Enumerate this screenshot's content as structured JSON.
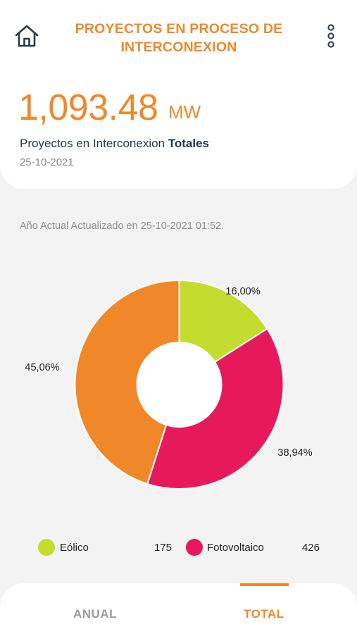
{
  "header": {
    "title": "PROYECTOS EN PROCESO DE INTERCONEXION"
  },
  "summary": {
    "value": "1,093.48",
    "unit": "MW",
    "subtitle_prefix": "Proyectos en Interconexion ",
    "subtitle_bold": "Totales",
    "date": "25-10-2021"
  },
  "updated_text": "Año Actual Actualizado en 25-10-2021 01:52.",
  "chart_data": {
    "type": "pie",
    "donut": true,
    "slices": [
      {
        "label": "16,00%",
        "percent": 16.0,
        "color": "#c3dc2e"
      },
      {
        "label": "38,94%",
        "percent": 38.94,
        "color": "#e8195b"
      },
      {
        "label": "45,06%",
        "percent": 45.06,
        "color": "#f0882a"
      }
    ],
    "legend": [
      {
        "name": "Eólico",
        "value": "175",
        "color": "#c3dc2e"
      },
      {
        "name": "Fotovoltaico",
        "value": "426",
        "color": "#e8195b"
      }
    ]
  },
  "tabs": [
    {
      "label": "ANUAL",
      "active": false
    },
    {
      "label": "TOTAL",
      "active": true
    }
  ],
  "colors": {
    "accent": "#f0882a",
    "navy": "#1e3550"
  }
}
